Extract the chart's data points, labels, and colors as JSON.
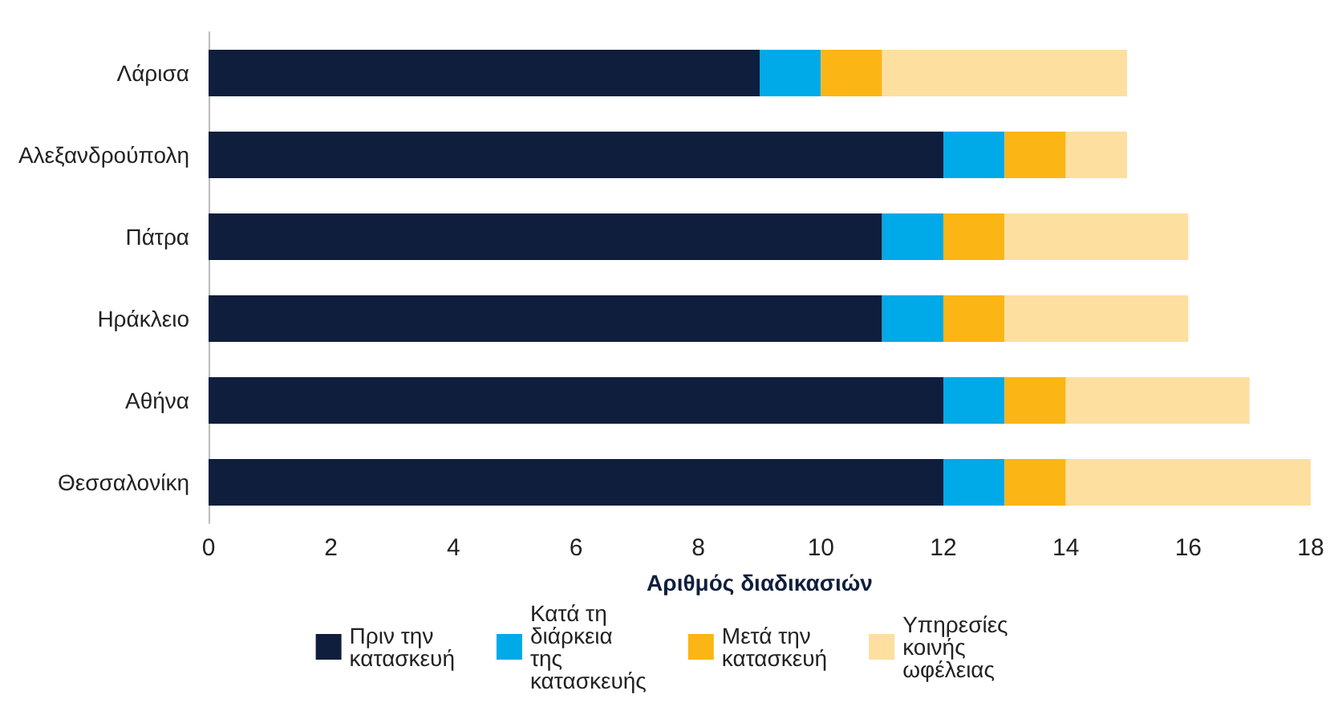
{
  "chart_data": {
    "type": "bar",
    "orientation": "horizontal",
    "stacked": true,
    "xlabel": "Αριθμός διαδικασιών",
    "categories": [
      "Λάρισα",
      "Αλεξανδρούπολη",
      "Πάτρα",
      "Ηράκλειο",
      "Αθήνα",
      "Θεσσαλονίκη"
    ],
    "series": [
      {
        "name": "Πριν την κατασκευή",
        "color": "#0f1e3c",
        "values": [
          9,
          12,
          11,
          11,
          12,
          12
        ]
      },
      {
        "name": "Κατά τη διάρκεια της κατασκευής",
        "color": "#00a9e8",
        "values": [
          1,
          1,
          1,
          1,
          1,
          1
        ]
      },
      {
        "name": "Μετά την κατασκευή",
        "color": "#fbb514",
        "values": [
          1,
          1,
          1,
          1,
          1,
          1
        ]
      },
      {
        "name": "Υπηρεσίες κοινής ωφέλειας",
        "color": "#fddfa0",
        "values": [
          4,
          1,
          3,
          3,
          3,
          4
        ]
      }
    ],
    "xlim": [
      0,
      18
    ],
    "xticks": [
      0,
      2,
      4,
      6,
      8,
      10,
      12,
      14,
      16,
      18
    ],
    "grid": false,
    "legend": "bottom"
  }
}
